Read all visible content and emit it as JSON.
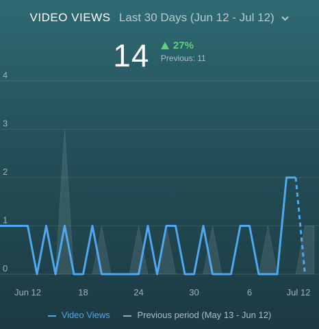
{
  "header": {
    "title": "VIDEO VIEWS",
    "range": "Last 30 Days (Jun 12 - Jul 12)",
    "range_icon": "chevron-down-icon"
  },
  "kpi": {
    "value": "14",
    "change_icon": "triangle-up-icon",
    "change": "27%",
    "previous": "Previous: 11"
  },
  "colors": {
    "current": "#4fa8f0",
    "previous": "#9aa9ad",
    "positive": "#5fd17a",
    "background_top": "#2f6a73",
    "background_bottom": "#1c3a43"
  },
  "chart_data": {
    "type": "line",
    "ylim": [
      0,
      4
    ],
    "yticks": [
      "0",
      "1",
      "2",
      "3",
      "4"
    ],
    "xticks": [
      "Jun 12",
      "18",
      "24",
      "30",
      "6",
      "Jul 12"
    ],
    "grid": true,
    "legend_position": "bottom",
    "series": [
      {
        "name": "Video Views",
        "dates": [
          "2024-06-09",
          "2024-06-10",
          "2024-06-11",
          "2024-06-12",
          "2024-06-13",
          "2024-06-14",
          "2024-06-15",
          "2024-06-16",
          "2024-06-17",
          "2024-06-18",
          "2024-06-19",
          "2024-06-20",
          "2024-06-21",
          "2024-06-22",
          "2024-06-23",
          "2024-06-24",
          "2024-06-25",
          "2024-06-26",
          "2024-06-27",
          "2024-06-28",
          "2024-06-29",
          "2024-06-30",
          "2024-07-01",
          "2024-07-02",
          "2024-07-03",
          "2024-07-04",
          "2024-07-05",
          "2024-07-06",
          "2024-07-07",
          "2024-07-08",
          "2024-07-09",
          "2024-07-10",
          "2024-07-11",
          "2024-07-12"
        ],
        "values": [
          1,
          1,
          1,
          1,
          0,
          1,
          0,
          1,
          0,
          0,
          1,
          0,
          0,
          0,
          0,
          0,
          1,
          0,
          1,
          1,
          0,
          0,
          1,
          0,
          0,
          0,
          1,
          1,
          0,
          0,
          0,
          2,
          2,
          0
        ],
        "dashed_from": "2024-07-11"
      },
      {
        "name": "Previous period (May 13 - Jun 12)",
        "dates": [
          "2024-06-09",
          "2024-06-10",
          "2024-06-11",
          "2024-06-12",
          "2024-06-13",
          "2024-06-14",
          "2024-06-15",
          "2024-06-16",
          "2024-06-17",
          "2024-06-18",
          "2024-06-19",
          "2024-06-20",
          "2024-06-21",
          "2024-06-22",
          "2024-06-23",
          "2024-06-24",
          "2024-06-25",
          "2024-06-26",
          "2024-06-27",
          "2024-06-28",
          "2024-06-29",
          "2024-06-30",
          "2024-07-01",
          "2024-07-02",
          "2024-07-03",
          "2024-07-04",
          "2024-07-05",
          "2024-07-06",
          "2024-07-07",
          "2024-07-08",
          "2024-07-09",
          "2024-07-10",
          "2024-07-11",
          "2024-07-12",
          "2024-07-13"
        ],
        "values": [
          0,
          0,
          0,
          0,
          0,
          0,
          0,
          3,
          0,
          0,
          0,
          1,
          0,
          0,
          0,
          1,
          0,
          0,
          1,
          0,
          0,
          0,
          0,
          1,
          0,
          0,
          0,
          0,
          0,
          1,
          0,
          0,
          0,
          1,
          1
        ]
      }
    ]
  }
}
